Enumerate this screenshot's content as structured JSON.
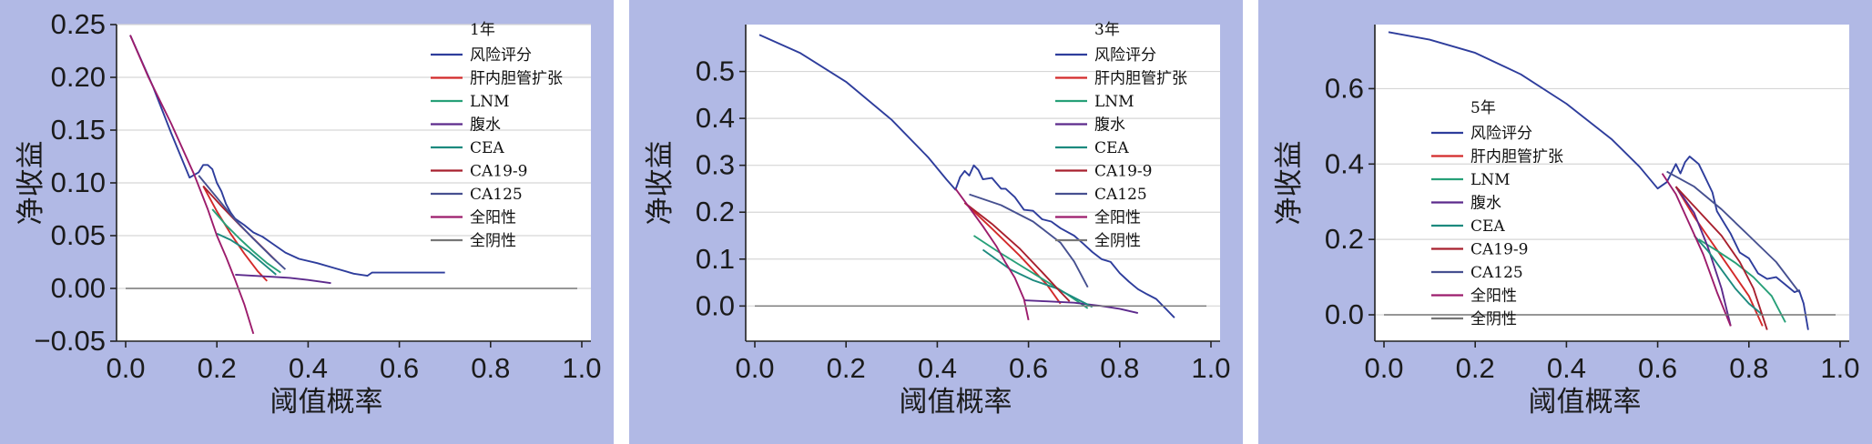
{
  "chart_data": [
    {
      "type": "line",
      "title": "",
      "xlabel": "阈值概率",
      "ylabel": "净收益",
      "xlim": [
        -0.02,
        1.02
      ],
      "ylim": [
        -0.05,
        0.25
      ],
      "xticks": [
        0.0,
        0.2,
        0.4,
        0.6,
        0.8,
        1.0
      ],
      "xtick_labels": [
        "0.0",
        "0.2",
        "0.4",
        "0.6",
        "0.8",
        "1.0"
      ],
      "yticks": [
        -0.05,
        0.0,
        0.05,
        0.1,
        0.15,
        0.2,
        0.25
      ],
      "ytick_labels": [
        "−0.05",
        "0.00",
        "0.05",
        "0.10",
        "0.15",
        "0.20",
        "0.25"
      ],
      "grid": "horizontal",
      "legend_title": "1年",
      "legend_position": "top-right",
      "series": [
        {
          "name": "风险评分",
          "color": "#2e3d9c",
          "x": [
            0.01,
            0.06,
            0.1,
            0.14,
            0.16,
            0.17,
            0.18,
            0.19,
            0.2,
            0.21,
            0.22,
            0.23,
            0.24,
            0.26,
            0.28,
            0.3,
            0.32,
            0.35,
            0.38,
            0.42,
            0.46,
            0.5,
            0.53,
            0.54,
            0.58,
            0.62,
            0.66,
            0.7
          ],
          "y": [
            0.24,
            0.191,
            0.147,
            0.105,
            0.11,
            0.117,
            0.117,
            0.113,
            0.1,
            0.092,
            0.08,
            0.072,
            0.066,
            0.06,
            0.053,
            0.049,
            0.043,
            0.034,
            0.028,
            0.024,
            0.019,
            0.014,
            0.012,
            0.015,
            0.015,
            0.015,
            0.015,
            0.015
          ]
        },
        {
          "name": "肝内胆管扩张",
          "color": "#d32a2a",
          "x": [
            0.17,
            0.2,
            0.23,
            0.26,
            0.29,
            0.31
          ],
          "y": [
            0.097,
            0.073,
            0.052,
            0.033,
            0.016,
            0.007
          ]
        },
        {
          "name": "LNM",
          "color": "#27a078",
          "x": [
            0.19,
            0.22,
            0.25,
            0.28,
            0.31,
            0.34
          ],
          "y": [
            0.075,
            0.06,
            0.047,
            0.035,
            0.024,
            0.015
          ]
        },
        {
          "name": "腹水",
          "color": "#5c2a8c",
          "x": [
            0.24,
            0.28,
            0.32,
            0.36,
            0.4,
            0.45
          ],
          "y": [
            0.013,
            0.012,
            0.011,
            0.01,
            0.008,
            0.005
          ]
        },
        {
          "name": "CEA",
          "color": "#1c8a7e",
          "x": [
            0.2,
            0.23,
            0.27,
            0.3,
            0.33
          ],
          "y": [
            0.052,
            0.046,
            0.035,
            0.024,
            0.013
          ]
        },
        {
          "name": "CA19-9",
          "color": "#a8202e",
          "x": [
            0.17,
            0.21,
            0.25,
            0.29,
            0.33
          ],
          "y": [
            0.097,
            0.078,
            0.06,
            0.043,
            0.026
          ]
        },
        {
          "name": "CA125",
          "color": "#465090",
          "x": [
            0.16,
            0.2,
            0.24,
            0.28,
            0.32,
            0.35
          ],
          "y": [
            0.107,
            0.086,
            0.065,
            0.047,
            0.03,
            0.018
          ]
        },
        {
          "name": "全阳性",
          "color": "#9c1c6c",
          "x": [
            0.01,
            0.05,
            0.1,
            0.15,
            0.18,
            0.2,
            0.22,
            0.24,
            0.26,
            0.28
          ],
          "y": [
            0.24,
            0.2,
            0.156,
            0.108,
            0.075,
            0.05,
            0.03,
            0.008,
            -0.015,
            -0.043
          ]
        },
        {
          "name": "全阴性",
          "color": "#777777",
          "x": [
            0.0,
            0.99
          ],
          "y": [
            0.0,
            0.0
          ]
        }
      ]
    },
    {
      "type": "line",
      "title": "",
      "xlabel": "阈值概率",
      "ylabel": "净收益",
      "xlim": [
        -0.02,
        1.02
      ],
      "ylim": [
        -0.075,
        0.6
      ],
      "xticks": [
        0.0,
        0.2,
        0.4,
        0.6,
        0.8,
        1.0
      ],
      "xtick_labels": [
        "0.0",
        "0.2",
        "0.4",
        "0.6",
        "0.8",
        "1.0"
      ],
      "yticks": [
        0.0,
        0.1,
        0.2,
        0.3,
        0.4,
        0.5
      ],
      "ytick_labels": [
        "0.0",
        "0.1",
        "0.2",
        "0.3",
        "0.4",
        "0.5"
      ],
      "grid": "horizontal",
      "legend_title": "3年",
      "legend_position": "top-right",
      "series": [
        {
          "name": "风险评分",
          "color": "#2e3d9c",
          "x": [
            0.01,
            0.1,
            0.2,
            0.3,
            0.38,
            0.42,
            0.44,
            0.45,
            0.46,
            0.47,
            0.48,
            0.49,
            0.5,
            0.52,
            0.54,
            0.55,
            0.57,
            0.59,
            0.61,
            0.63,
            0.65,
            0.67,
            0.7,
            0.72,
            0.74,
            0.76,
            0.78,
            0.8,
            0.82,
            0.84,
            0.86,
            0.88,
            0.9,
            0.92
          ],
          "y": [
            0.578,
            0.539,
            0.478,
            0.397,
            0.317,
            0.27,
            0.248,
            0.275,
            0.288,
            0.278,
            0.3,
            0.29,
            0.27,
            0.273,
            0.25,
            0.25,
            0.232,
            0.205,
            0.203,
            0.185,
            0.18,
            0.166,
            0.15,
            0.133,
            0.115,
            0.1,
            0.094,
            0.07,
            0.052,
            0.036,
            0.025,
            0.015,
            -0.005,
            -0.025
          ]
        },
        {
          "name": "肝内胆管扩张",
          "color": "#d32a2a",
          "x": [
            0.46,
            0.52,
            0.58,
            0.64,
            0.67
          ],
          "y": [
            0.22,
            0.165,
            0.108,
            0.046,
            0.005
          ]
        },
        {
          "name": "LNM",
          "color": "#27a078",
          "x": [
            0.48,
            0.53,
            0.58,
            0.63,
            0.68,
            0.73
          ],
          "y": [
            0.15,
            0.118,
            0.088,
            0.058,
            0.028,
            -0.005
          ]
        },
        {
          "name": "腹水",
          "color": "#5c2a8c",
          "x": [
            0.59,
            0.64,
            0.7,
            0.76,
            0.8,
            0.84
          ],
          "y": [
            0.012,
            0.01,
            0.007,
            0.0,
            -0.006,
            -0.015
          ]
        },
        {
          "name": "CEA",
          "color": "#1c8a7e",
          "x": [
            0.5,
            0.56,
            0.61,
            0.66,
            0.7,
            0.74
          ],
          "y": [
            0.12,
            0.078,
            0.055,
            0.038,
            0.018,
            -0.002
          ]
        },
        {
          "name": "CA19-9",
          "color": "#a8202e",
          "x": [
            0.46,
            0.52,
            0.58,
            0.63,
            0.67,
            0.69
          ],
          "y": [
            0.22,
            0.175,
            0.123,
            0.072,
            0.03,
            0.01
          ]
        },
        {
          "name": "CA125",
          "color": "#465090",
          "x": [
            0.47,
            0.54,
            0.61,
            0.67,
            0.7,
            0.73
          ],
          "y": [
            0.238,
            0.215,
            0.18,
            0.135,
            0.095,
            0.04
          ]
        },
        {
          "name": "全阳性",
          "color": "#9c1c6c",
          "x": [
            0.44,
            0.47,
            0.5,
            0.53,
            0.55,
            0.57,
            0.59,
            0.6
          ],
          "y": [
            0.25,
            0.21,
            0.17,
            0.127,
            0.092,
            0.06,
            0.015,
            -0.03
          ]
        },
        {
          "name": "全阴性",
          "color": "#777777",
          "x": [
            0.0,
            0.99
          ],
          "y": [
            0.0,
            0.0
          ]
        }
      ]
    },
    {
      "type": "line",
      "title": "",
      "xlabel": "阈值概率",
      "ylabel": "净收益",
      "xlim": [
        -0.02,
        1.02
      ],
      "ylim": [
        -0.07,
        0.77
      ],
      "xticks": [
        0.0,
        0.2,
        0.4,
        0.6,
        0.8,
        1.0
      ],
      "xtick_labels": [
        "0.0",
        "0.2",
        "0.4",
        "0.6",
        "0.8",
        "1.0"
      ],
      "yticks": [
        0.0,
        0.2,
        0.4,
        0.6
      ],
      "ytick_labels": [
        "0.0",
        "0.2",
        "0.4",
        "0.6"
      ],
      "grid": "horizontal",
      "legend_title": "5年",
      "legend_position": "center-left",
      "series": [
        {
          "name": "风险评分",
          "color": "#2e3d9c",
          "x": [
            0.01,
            0.1,
            0.2,
            0.3,
            0.4,
            0.5,
            0.56,
            0.6,
            0.62,
            0.64,
            0.65,
            0.66,
            0.67,
            0.68,
            0.69,
            0.7,
            0.72,
            0.73,
            0.75,
            0.76,
            0.78,
            0.8,
            0.82,
            0.84,
            0.86,
            0.88,
            0.9,
            0.91,
            0.92,
            0.93
          ],
          "y": [
            0.75,
            0.73,
            0.695,
            0.638,
            0.56,
            0.465,
            0.393,
            0.335,
            0.352,
            0.4,
            0.375,
            0.405,
            0.42,
            0.41,
            0.4,
            0.375,
            0.325,
            0.275,
            0.235,
            0.215,
            0.165,
            0.15,
            0.11,
            0.095,
            0.1,
            0.08,
            0.06,
            0.065,
            0.03,
            -0.04
          ]
        },
        {
          "name": "肝内胆管扩张",
          "color": "#d32a2a",
          "x": [
            0.64,
            0.68,
            0.72,
            0.76,
            0.8,
            0.83
          ],
          "y": [
            0.34,
            0.26,
            0.19,
            0.12,
            0.05,
            -0.03
          ]
        },
        {
          "name": "LNM",
          "color": "#27a078",
          "x": [
            0.69,
            0.73,
            0.77,
            0.81,
            0.85,
            0.88
          ],
          "y": [
            0.2,
            0.17,
            0.138,
            0.1,
            0.05,
            -0.02
          ]
        },
        {
          "name": "腹水",
          "color": "#5c2a8c",
          "x": [
            0.64,
            0.68,
            0.71,
            0.74,
            0.76
          ],
          "y": [
            0.34,
            0.27,
            0.18,
            0.07,
            -0.03
          ]
        },
        {
          "name": "CEA",
          "color": "#1c8a7e",
          "x": [
            0.68,
            0.71,
            0.74,
            0.77,
            0.8,
            0.83
          ],
          "y": [
            0.21,
            0.17,
            0.12,
            0.07,
            0.03,
            0.0
          ]
        },
        {
          "name": "CA19-9",
          "color": "#a8202e",
          "x": [
            0.64,
            0.69,
            0.74,
            0.78,
            0.81,
            0.84
          ],
          "y": [
            0.34,
            0.275,
            0.21,
            0.14,
            0.07,
            -0.04
          ]
        },
        {
          "name": "CA125",
          "color": "#465090",
          "x": [
            0.62,
            0.68,
            0.74,
            0.8,
            0.86,
            0.91
          ],
          "y": [
            0.38,
            0.34,
            0.28,
            0.21,
            0.14,
            0.06
          ]
        },
        {
          "name": "全阳性",
          "color": "#9c1c6c",
          "x": [
            0.61,
            0.64,
            0.67,
            0.7,
            0.73,
            0.76
          ],
          "y": [
            0.375,
            0.32,
            0.24,
            0.16,
            0.06,
            -0.03
          ]
        },
        {
          "name": "全阴性",
          "color": "#777777",
          "x": [
            0.0,
            0.99
          ],
          "y": [
            0.0,
            0.0
          ]
        }
      ]
    }
  ]
}
